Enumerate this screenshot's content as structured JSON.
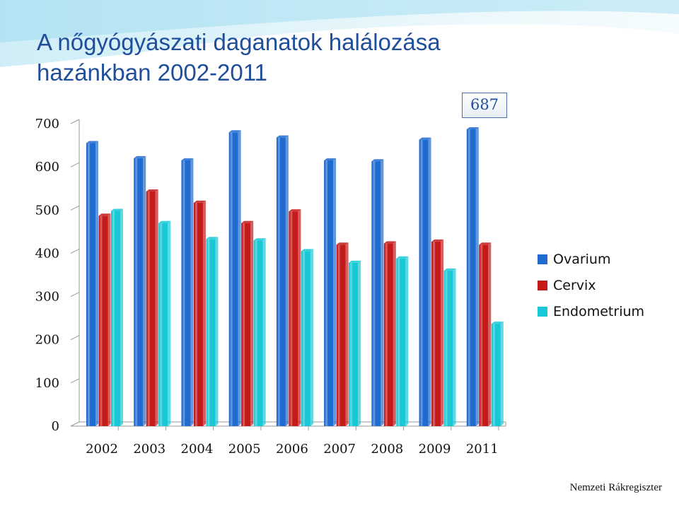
{
  "slide": {
    "title_line1": "A nőgyógyászati daganatok halálozása",
    "title_line2": "hazánkban 2002-2011",
    "source": "Nemzeti Rákregiszter",
    "callout": "687"
  },
  "colors": {
    "Ovarium": "#1f6bd0",
    "Cervix": "#c41a1a",
    "Endometrium": "#19c8d6",
    "title": "#1f4e9a"
  },
  "chart_data": {
    "type": "bar",
    "title": "",
    "xlabel": "",
    "ylabel": "",
    "ylim": [
      0,
      700
    ],
    "yticks": [
      "0",
      "100",
      "200",
      "300",
      "400",
      "500",
      "600",
      "700"
    ],
    "grid": false,
    "legend_position": "right",
    "categories": [
      "2002",
      "2003",
      "2004",
      "2005",
      "2006",
      "2007",
      "2008",
      "2009",
      "2011"
    ],
    "series": [
      {
        "name": "Ovarium",
        "values": [
          655,
          620,
          615,
          680,
          668,
          615,
          613,
          663,
          687
        ]
      },
      {
        "name": "Cervix",
        "values": [
          487,
          543,
          517,
          470,
          497,
          420,
          423,
          427,
          420
        ]
      },
      {
        "name": "Endometrium",
        "values": [
          498,
          470,
          433,
          430,
          405,
          378,
          388,
          360,
          237
        ]
      }
    ],
    "annotations": [
      {
        "category": "2011",
        "series": "Ovarium",
        "text": "687"
      }
    ]
  }
}
